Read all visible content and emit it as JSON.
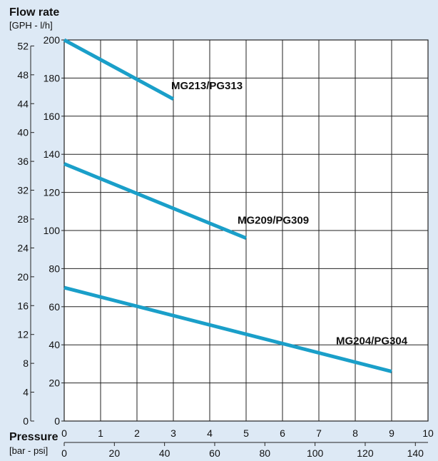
{
  "colors": {
    "background": "#dde9f5",
    "plot_area": "#ffffff",
    "grid": "#222222",
    "series": "#1a9fc9"
  },
  "chart_data": {
    "type": "line",
    "title": "Flow rate",
    "subtitle": "[GPH - l/h]",
    "xlabel": "Pressure",
    "xlabel_units": "[bar - psi]",
    "x_bar": {
      "min": 0,
      "max": 10,
      "ticks": [
        "0",
        "1",
        "2",
        "3",
        "4",
        "5",
        "6",
        "7",
        "8",
        "9",
        "10"
      ]
    },
    "x_psi": {
      "min": 0,
      "max": 145.04,
      "ticks": [
        "0",
        "20",
        "40",
        "60",
        "80",
        "100",
        "120",
        "140"
      ]
    },
    "y_lh": {
      "min": 0,
      "max": 200,
      "ticks": [
        "0",
        "20",
        "40",
        "60",
        "80",
        "100",
        "120",
        "140",
        "160",
        "180",
        "200"
      ]
    },
    "y_gph": {
      "min": 0,
      "max": 52.83,
      "ticks": [
        "0",
        "4",
        "8",
        "12",
        "16",
        "20",
        "24",
        "28",
        "32",
        "36",
        "40",
        "44",
        "48",
        "52"
      ]
    },
    "grid": true,
    "series": [
      {
        "name": "MG213/PG313",
        "x": [
          0,
          3
        ],
        "y": [
          200,
          169
        ]
      },
      {
        "name": "MG209/PG309",
        "x": [
          0,
          5
        ],
        "y": [
          135,
          96
        ]
      },
      {
        "name": "MG204/PG304",
        "x": [
          0,
          9
        ],
        "y": [
          70,
          26
        ]
      }
    ]
  }
}
